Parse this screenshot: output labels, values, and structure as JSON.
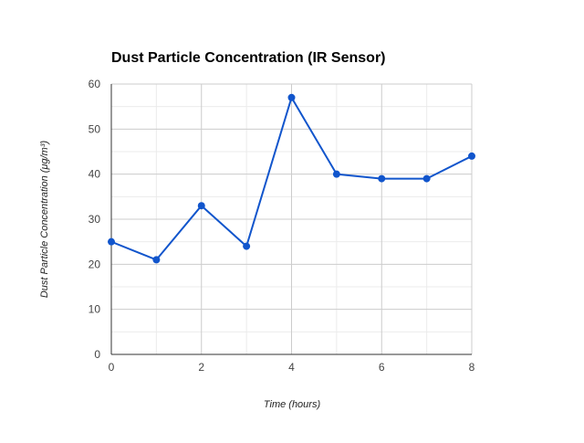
{
  "chart_data": {
    "type": "line",
    "title": "Dust Particle Concentration (IR Sensor)",
    "xlabel": "Time (hours)",
    "ylabel": "Dust Particle Concentration (μg/m³)",
    "xlim": [
      0,
      8
    ],
    "ylim": [
      0,
      60
    ],
    "x_ticks": [
      0,
      2,
      4,
      6,
      8
    ],
    "y_ticks": [
      0,
      10,
      20,
      30,
      40,
      50,
      60
    ],
    "grid": true,
    "legend": "none",
    "series": [
      {
        "color": "#1155cc",
        "x": [
          0,
          1,
          2,
          3,
          4,
          5,
          6,
          7,
          8
        ],
        "y": [
          25,
          21,
          33,
          24,
          57,
          40,
          39,
          39,
          44
        ]
      }
    ]
  }
}
